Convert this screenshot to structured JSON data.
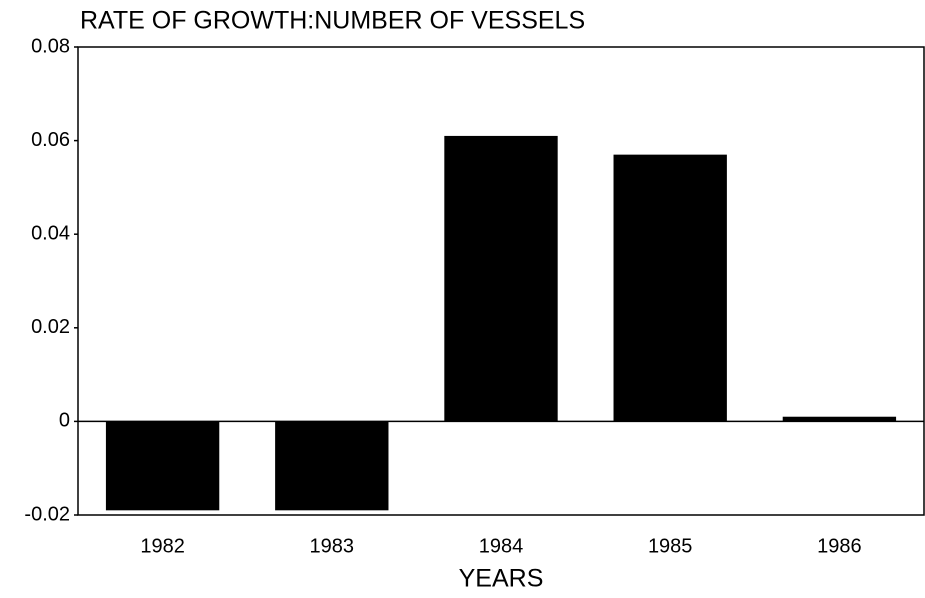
{
  "chart_data": {
    "type": "bar",
    "title": "RATE OF GROWTH:NUMBER OF VESSELS",
    "x_label": "YEARS",
    "categories": [
      "1982",
      "1983",
      "1984",
      "1985",
      "1986"
    ],
    "values": [
      -0.019,
      -0.019,
      0.061,
      0.057,
      0.001
    ],
    "color": "#000000",
    "ylim": [
      -0.02,
      0.08
    ],
    "yticks": [
      -0.02,
      0,
      0.02,
      0.04,
      0.06,
      0.08
    ],
    "grid": false
  }
}
